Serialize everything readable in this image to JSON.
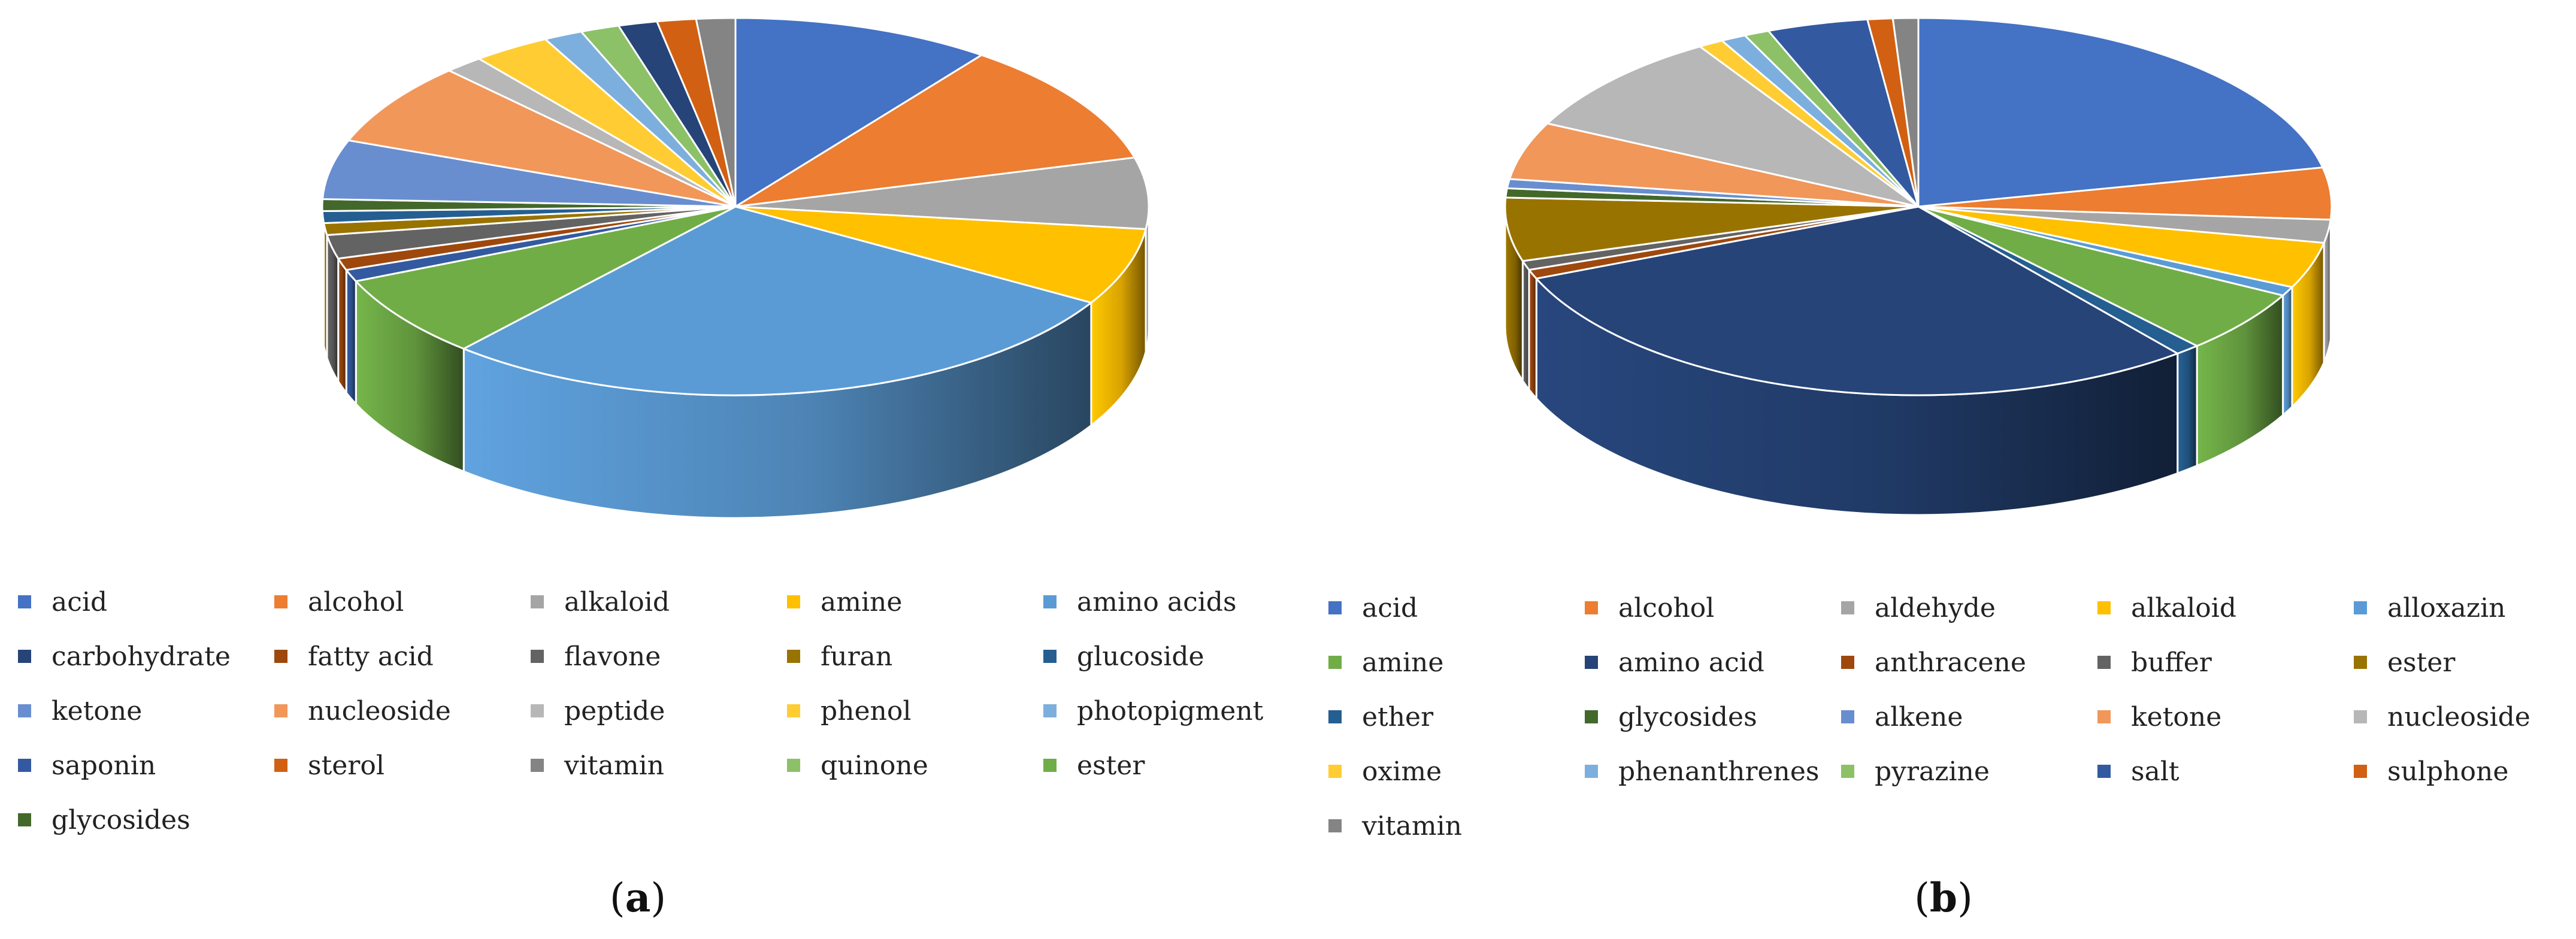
{
  "chart_data": [
    {
      "type": "pie",
      "panel_label": "a",
      "title": "",
      "legend_position": "bottom",
      "categories": [
        "acid",
        "alcohol",
        "alkaloid",
        "amine",
        "amino acids",
        "carbohydrate",
        "fatty acid",
        "flavone",
        "furan",
        "glucoside",
        "ketone",
        "nucleoside",
        "peptide",
        "phenol",
        "photopigment",
        "saponin",
        "sterol",
        "vitamin",
        "quinone",
        "ester",
        "glycosides"
      ],
      "colors": [
        "#4472C4",
        "#ED7D31",
        "#A5A5A5",
        "#FFC000",
        "#5B9BD5",
        "#264478",
        "#9E480E",
        "#636363",
        "#997300",
        "#255E91",
        "#698ED0",
        "#F1975A",
        "#B7B7B7",
        "#FFCD33",
        "#7CAFDD",
        "#335AA1",
        "#D26012",
        "#848484",
        "#8CC168",
        "#70AD47",
        "#43682B"
      ],
      "slice_order": [
        "acid",
        "alcohol",
        "alkaloid",
        "amine",
        "amino acids",
        "ester",
        "saponin",
        "fatty acid",
        "flavone",
        "furan",
        "glucoside",
        "glycosides",
        "ketone",
        "nucleoside",
        "peptide",
        "phenol",
        "photopigment",
        "quinone",
        "carbohydrate",
        "sterol",
        "vitamin"
      ],
      "values": {
        "acid": 10.0,
        "alcohol": 10.5,
        "alkaloid": 6.0,
        "amine": 6.5,
        "amino acids": 27.5,
        "ester": 7.0,
        "saponin": 1.0,
        "fatty acid": 1.0,
        "flavone": 2.0,
        "furan": 1.0,
        "glucoside": 1.0,
        "glycosides": 1.0,
        "ketone": 5.0,
        "nucleoside": 7.0,
        "peptide": 1.5,
        "phenol": 3.0,
        "photopigment": 1.5,
        "quinone": 1.5,
        "carbohydrate": 1.5,
        "sterol": 1.5,
        "vitamin": 1.5
      }
    },
    {
      "type": "pie",
      "panel_label": "b",
      "title": "",
      "legend_position": "bottom",
      "categories": [
        "acid",
        "alcohol",
        "aldehyde",
        "alkaloid",
        "alloxazin",
        "amine",
        "amino acid",
        "anthracene",
        "buffer",
        "ester",
        "ether",
        "glycosides",
        "alkene",
        "ketone",
        "nucleoside",
        "oxime",
        "phenanthrenes",
        "pyrazine",
        "salt",
        "sulphone",
        "vitamin"
      ],
      "colors": [
        "#4472C4",
        "#ED7D31",
        "#A5A5A5",
        "#FFC000",
        "#5B9BD5",
        "#70AD47",
        "#264478",
        "#9E480E",
        "#636363",
        "#997300",
        "#255E91",
        "#43682B",
        "#698ED0",
        "#F1975A",
        "#B7B7B7",
        "#FFCD33",
        "#7CAFDD",
        "#8CC168",
        "#335AA1",
        "#D26012",
        "#848484"
      ],
      "slice_order": [
        "acid",
        "alcohol",
        "aldehyde",
        "alkaloid",
        "alloxazin",
        "amine",
        "ether",
        "amino acid",
        "anthracene",
        "buffer",
        "ester",
        "glycosides",
        "alkene",
        "ketone",
        "nucleoside",
        "oxime",
        "phenanthrenes",
        "pyrazine",
        "salt",
        "sulphone",
        "vitamin"
      ],
      "values": {
        "acid": 22.0,
        "alcohol": 4.5,
        "aldehyde": 2.0,
        "alkaloid": 4.0,
        "alloxazin": 0.8,
        "amine": 5.5,
        "ether": 1.0,
        "amino acid": 30.0,
        "anthracene": 0.8,
        "buffer": 0.8,
        "ester": 5.5,
        "glycosides": 0.8,
        "alkene": 0.8,
        "ketone": 5.0,
        "nucleoside": 9.0,
        "oxime": 1.0,
        "phenanthrenes": 1.0,
        "pyrazine": 1.0,
        "salt": 4.0,
        "sulphone": 1.0,
        "vitamin": 1.0
      }
    }
  ]
}
